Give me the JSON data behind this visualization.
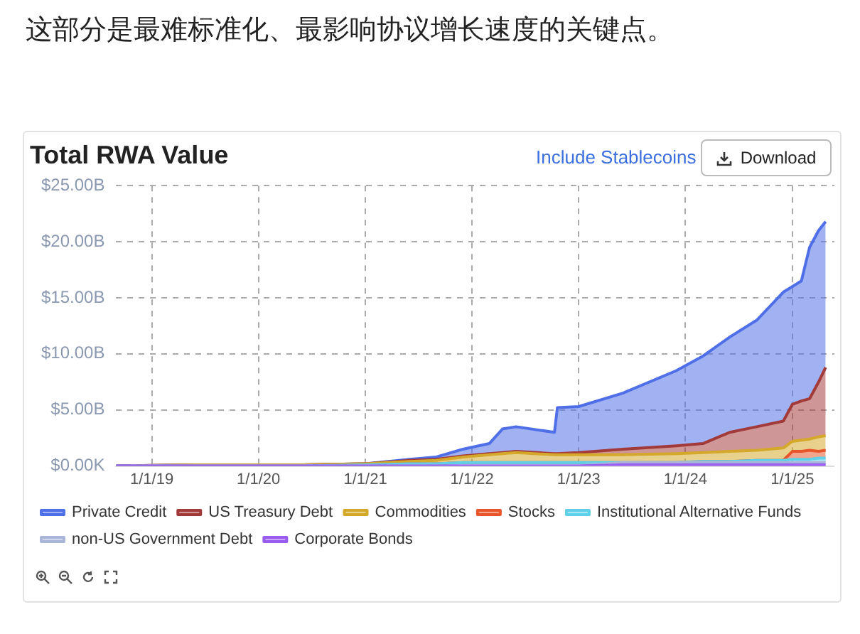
{
  "chart_data": {
    "type": "area",
    "title": "Total RWA Value",
    "annotations": [
      "这部分是最难标准化、最影响协议增长速度的关键点。",
      "Include Stablecoins",
      "Download"
    ],
    "x": [
      "2018-09-01",
      "2019-06-01",
      "2020-06-01",
      "2021-01-01",
      "2021-06-01",
      "2021-09-01",
      "2021-12-01",
      "2022-03-01",
      "2022-04-15",
      "2022-06-01",
      "2022-10-10",
      "2022-10-20",
      "2023-01-01",
      "2023-06-01",
      "2023-12-01",
      "2024-03-01",
      "2024-06-01",
      "2024-09-01",
      "2024-12-01",
      "2025-01-01",
      "2025-02-01",
      "2025-03-01",
      "2025-04-01",
      "2025-04-25"
    ],
    "stacked": true,
    "series": [
      {
        "name": "Corporate Bonds",
        "color": "#9a5cf0",
        "values": [
          0,
          0,
          0,
          0,
          0,
          0,
          0,
          0,
          0,
          0,
          0,
          0,
          0,
          0.1,
          0.1,
          0.1,
          0.1,
          0.1,
          0.1,
          0.1,
          0.1,
          0.1,
          0.1,
          0.1
        ]
      },
      {
        "name": "non-US Government Debt",
        "color": "#a9b6d9",
        "values": [
          0,
          0,
          0,
          0,
          0,
          0,
          0,
          0,
          0,
          0,
          0,
          0,
          0,
          0.2,
          0.2,
          0.2,
          0.2,
          0.2,
          0.2,
          0.2,
          0.2,
          0.2,
          0.2,
          0.2
        ]
      },
      {
        "name": "Institutional Alternative Funds",
        "color": "#5fd0e8",
        "values": [
          0,
          0,
          0,
          0.1,
          0.2,
          0.2,
          0.3,
          0.3,
          0.3,
          0.3,
          0.3,
          0.3,
          0.3,
          0,
          0,
          0.1,
          0.1,
          0.2,
          0.2,
          0.3,
          0.3,
          0.3,
          0.4,
          0.4
        ]
      },
      {
        "name": "Stocks",
        "color": "#e8552a",
        "values": [
          0,
          0,
          0,
          0,
          0,
          0,
          0,
          0,
          0,
          0,
          0,
          0,
          0,
          0,
          0,
          0,
          0,
          0,
          0,
          0.7,
          0.7,
          0.8,
          0.6,
          0.7
        ]
      },
      {
        "name": "Commodities",
        "color": "#d4a82a",
        "values": [
          0,
          0.1,
          0.1,
          0.1,
          0.2,
          0.3,
          0.5,
          0.7,
          0.8,
          0.9,
          0.7,
          0.7,
          0.7,
          0.7,
          0.8,
          0.8,
          0.9,
          0.9,
          1.1,
          0.9,
          1.0,
          1.0,
          1.3,
          1.3
        ]
      },
      {
        "name": "US Treasury Debt",
        "color": "#a33a3a",
        "values": [
          0,
          0,
          0,
          0,
          0.1,
          0.1,
          0.1,
          0.1,
          0.1,
          0.1,
          0.1,
          0.1,
          0.2,
          0.5,
          0.7,
          0.8,
          1.7,
          2.1,
          2.4,
          3.3,
          3.5,
          3.6,
          4.9,
          6.1
        ]
      },
      {
        "name": "Private Credit",
        "color": "#4f6fe8",
        "values": [
          0,
          0,
          0,
          0,
          0.1,
          0.2,
          0.6,
          0.9,
          2.1,
          2.2,
          1.9,
          4.1,
          4.1,
          5.0,
          6.7,
          7.8,
          8.5,
          9.5,
          11.5,
          10.5,
          10.7,
          13.5,
          13.5,
          13.0
        ]
      }
    ],
    "xlim": [
      "2018-09-01",
      "2025-05-25"
    ],
    "xticks": [
      {
        "value": "2019-01-01",
        "label": "1/1/19"
      },
      {
        "value": "2020-01-01",
        "label": "1/1/20"
      },
      {
        "value": "2021-01-01",
        "label": "1/1/21"
      },
      {
        "value": "2022-01-01",
        "label": "1/1/22"
      },
      {
        "value": "2023-01-01",
        "label": "1/1/23"
      },
      {
        "value": "2024-01-01",
        "label": "1/1/24"
      },
      {
        "value": "2025-01-01",
        "label": "1/1/25"
      }
    ],
    "ylim": [
      0,
      25
    ],
    "yticks": [
      {
        "value": 0,
        "label": "$0.00K"
      },
      {
        "value": 5,
        "label": "$5.00B"
      },
      {
        "value": 10,
        "label": "$10.00B"
      },
      {
        "value": 15,
        "label": "$15.00B"
      },
      {
        "value": 20,
        "label": "$20.00B"
      },
      {
        "value": 25,
        "label": "$25.00B"
      }
    ],
    "grid": true,
    "legend": "bottom"
  }
}
